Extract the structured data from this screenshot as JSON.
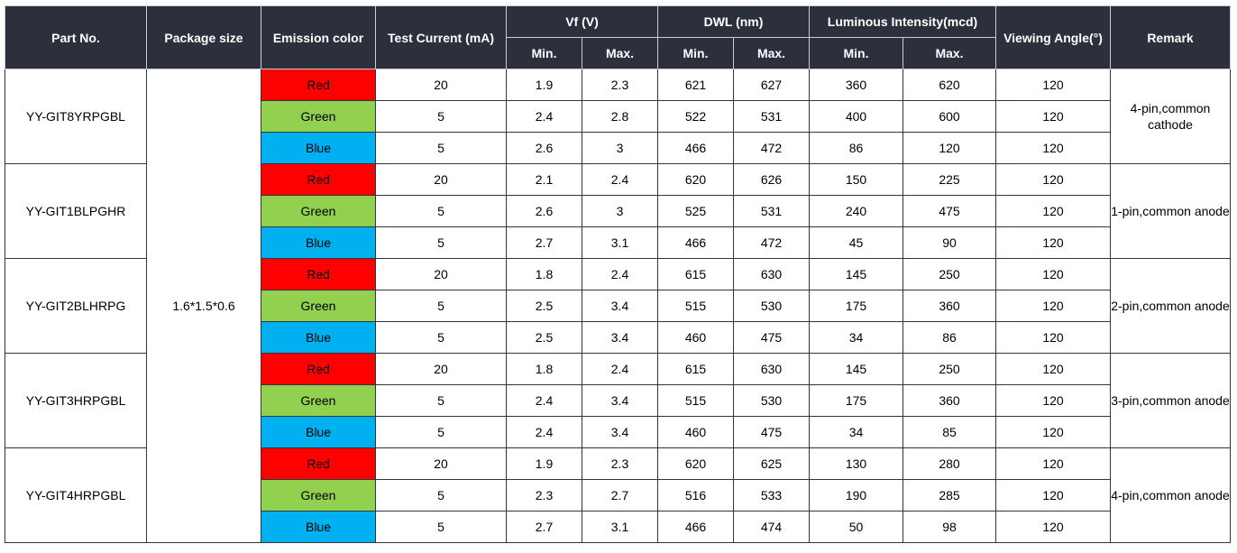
{
  "headers": {
    "part_no": "Part No.",
    "package_size": "Package size",
    "emission_color": "Emission color",
    "test_current": "Test Current (mA)",
    "vf": "Vf (V)",
    "dwl": "DWL (nm)",
    "luminous": "Luminous Intensity(mcd)",
    "viewing_angle": "Viewing Angle(°)",
    "remark": "Remark",
    "min": "Min.",
    "max": "Max."
  },
  "package_size": "1.6*1.5*0.6",
  "colors": {
    "Red": "#fe0000",
    "Green": "#92d050",
    "Blue": "#00b0f0"
  },
  "groups": [
    {
      "part_no": "YY-GIT8YRPGBL",
      "remark": "4-pin,common cathode",
      "rows": [
        {
          "color": "Red",
          "current": "20",
          "vf_min": "1.9",
          "vf_max": "2.3",
          "dwl_min": "621",
          "dwl_max": "627",
          "iv_min": "360",
          "iv_max": "620",
          "angle": "120"
        },
        {
          "color": "Green",
          "current": "5",
          "vf_min": "2.4",
          "vf_max": "2.8",
          "dwl_min": "522",
          "dwl_max": "531",
          "iv_min": "400",
          "iv_max": "600",
          "angle": "120"
        },
        {
          "color": "Blue",
          "current": "5",
          "vf_min": "2.6",
          "vf_max": "3",
          "dwl_min": "466",
          "dwl_max": "472",
          "iv_min": "86",
          "iv_max": "120",
          "angle": "120"
        }
      ]
    },
    {
      "part_no": "YY-GIT1BLPGHR",
      "remark": "1-pin,common anode",
      "rows": [
        {
          "color": "Red",
          "current": "20",
          "vf_min": "2.1",
          "vf_max": "2.4",
          "dwl_min": "620",
          "dwl_max": "626",
          "iv_min": "150",
          "iv_max": "225",
          "angle": "120"
        },
        {
          "color": "Green",
          "current": "5",
          "vf_min": "2.6",
          "vf_max": "3",
          "dwl_min": "525",
          "dwl_max": "531",
          "iv_min": "240",
          "iv_max": "475",
          "angle": "120"
        },
        {
          "color": "Blue",
          "current": "5",
          "vf_min": "2.7",
          "vf_max": "3.1",
          "dwl_min": "466",
          "dwl_max": "472",
          "iv_min": "45",
          "iv_max": "90",
          "angle": "120"
        }
      ]
    },
    {
      "part_no": "YY-GIT2BLHRPG",
      "remark": "2-pin,common anode",
      "rows": [
        {
          "color": "Red",
          "current": "20",
          "vf_min": "1.8",
          "vf_max": "2.4",
          "dwl_min": "615",
          "dwl_max": "630",
          "iv_min": "145",
          "iv_max": "250",
          "angle": "120"
        },
        {
          "color": "Green",
          "current": "5",
          "vf_min": "2.5",
          "vf_max": "3.4",
          "dwl_min": "515",
          "dwl_max": "530",
          "iv_min": "175",
          "iv_max": "360",
          "angle": "120"
        },
        {
          "color": "Blue",
          "current": "5",
          "vf_min": "2.5",
          "vf_max": "3.4",
          "dwl_min": "460",
          "dwl_max": "475",
          "iv_min": "34",
          "iv_max": "86",
          "angle": "120"
        }
      ]
    },
    {
      "part_no": "YY-GIT3HRPGBL",
      "remark": "3-pin,common anode",
      "rows": [
        {
          "color": "Red",
          "current": "20",
          "vf_min": "1.8",
          "vf_max": "2.4",
          "dwl_min": "615",
          "dwl_max": "630",
          "iv_min": "145",
          "iv_max": "250",
          "angle": "120"
        },
        {
          "color": "Green",
          "current": "5",
          "vf_min": "2.4",
          "vf_max": "3.4",
          "dwl_min": "515",
          "dwl_max": "530",
          "iv_min": "175",
          "iv_max": "360",
          "angle": "120"
        },
        {
          "color": "Blue",
          "current": "5",
          "vf_min": "2.4",
          "vf_max": "3.4",
          "dwl_min": "460",
          "dwl_max": "475",
          "iv_min": "34",
          "iv_max": "85",
          "angle": "120"
        }
      ]
    },
    {
      "part_no": "YY-GIT4HRPGBL",
      "remark": "4-pin,common anode",
      "rows": [
        {
          "color": "Red",
          "current": "20",
          "vf_min": "1.9",
          "vf_max": "2.3",
          "dwl_min": "620",
          "dwl_max": "625",
          "iv_min": "130",
          "iv_max": "280",
          "angle": "120"
        },
        {
          "color": "Green",
          "current": "5",
          "vf_min": "2.3",
          "vf_max": "2.7",
          "dwl_min": "516",
          "dwl_max": "533",
          "iv_min": "190",
          "iv_max": "285",
          "angle": "120"
        },
        {
          "color": "Blue",
          "current": "5",
          "vf_min": "2.7",
          "vf_max": "3.1",
          "dwl_min": "466",
          "dwl_max": "474",
          "iv_min": "50",
          "iv_max": "98",
          "angle": "120"
        }
      ]
    }
  ]
}
